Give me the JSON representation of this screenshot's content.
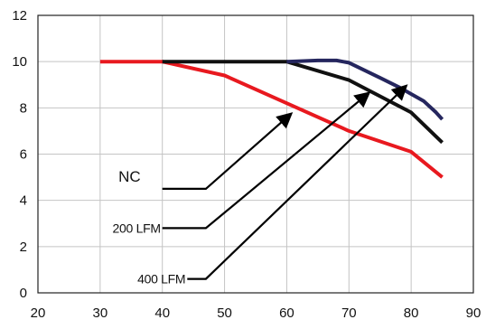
{
  "chart_data": {
    "type": "line",
    "title": "",
    "xlabel": "",
    "ylabel": "",
    "xlim": [
      20,
      90
    ],
    "ylim": [
      0,
      12
    ],
    "x_ticks": [
      20,
      30,
      40,
      50,
      60,
      70,
      80,
      90
    ],
    "y_ticks": [
      0,
      2,
      4,
      6,
      8,
      10,
      12
    ],
    "grid": true,
    "legend": "none",
    "series": [
      {
        "color": "#e8191f",
        "x": [
          30,
          40,
          50,
          60,
          70,
          80,
          85
        ],
        "y": [
          10,
          10,
          9.4,
          8.2,
          7.0,
          6.1,
          5.0
        ]
      },
      {
        "color": "#111111",
        "x": [
          40,
          50,
          60,
          70,
          80,
          85
        ],
        "y": [
          10,
          10,
          10,
          9.2,
          7.8,
          6.5
        ]
      },
      {
        "color": "#25265e",
        "x": [
          60,
          65,
          68,
          70,
          75,
          78,
          80,
          82,
          84,
          85
        ],
        "y": [
          10,
          10.05,
          10.05,
          9.95,
          9.3,
          8.9,
          8.6,
          8.3,
          7.8,
          7.5
        ]
      }
    ],
    "annotations": [
      {
        "text": "NC",
        "style": "large",
        "path_x": [
          40,
          47,
          60.5
        ],
        "path_y": [
          4.5,
          4.5,
          7.7
        ]
      },
      {
        "text": "200 LFM",
        "style": "small",
        "path_x": [
          40,
          47,
          73
        ],
        "path_y": [
          2.8,
          2.8,
          8.6
        ]
      },
      {
        "text": "400 LFM",
        "style": "small",
        "path_x": [
          44,
          47,
          79
        ],
        "path_y": [
          0.6,
          0.6,
          8.9
        ]
      }
    ]
  }
}
